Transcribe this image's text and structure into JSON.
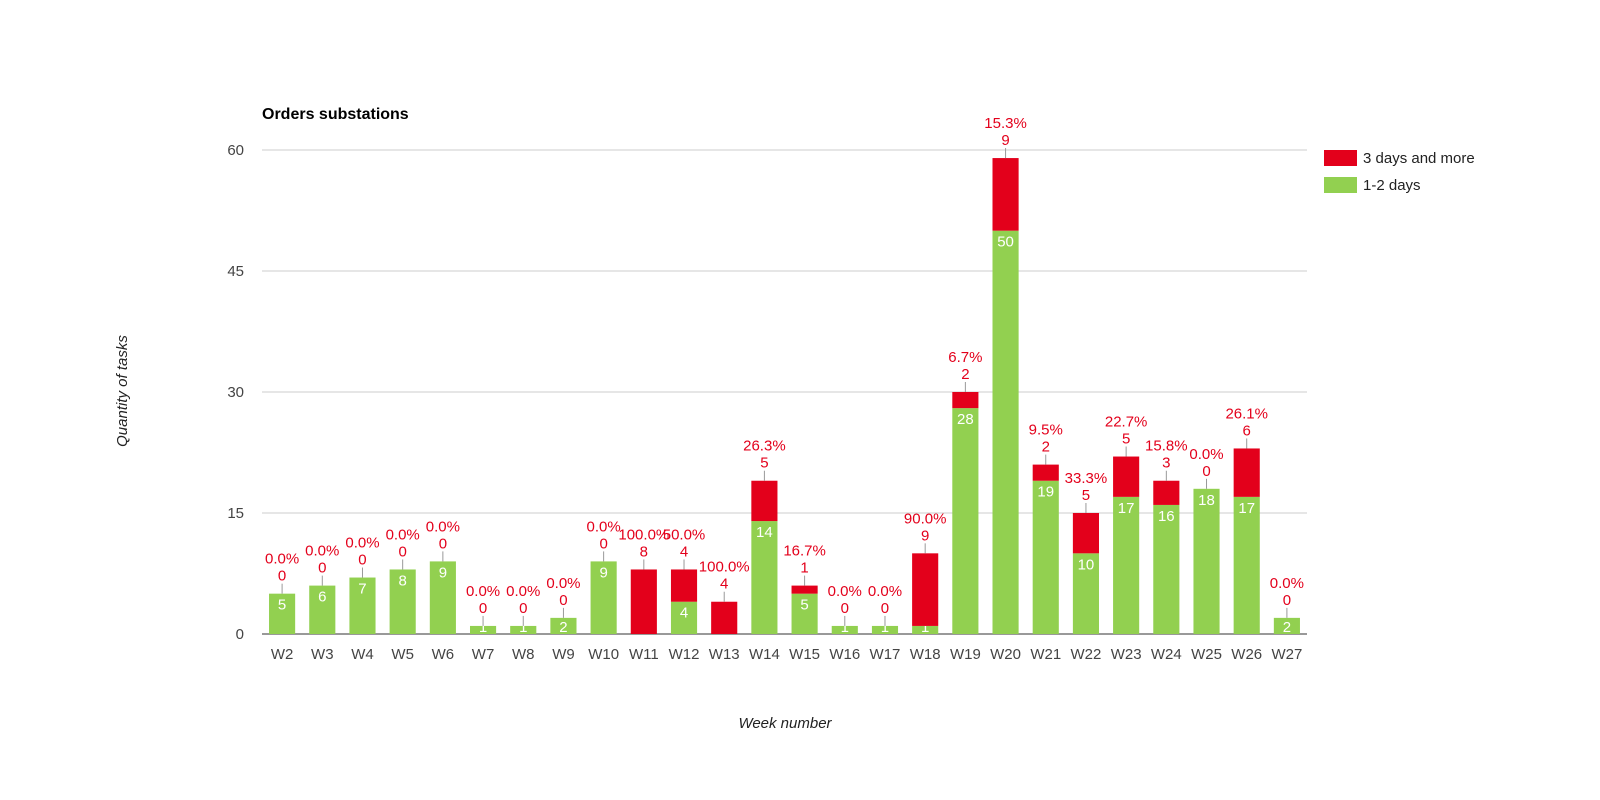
{
  "chart_data": {
    "type": "bar",
    "stacked": true,
    "title": "Orders substations",
    "xlabel": "Week number",
    "ylabel": "Quantity of tasks",
    "ylim": [
      0,
      60
    ],
    "yticks": [
      "0",
      "15",
      "30",
      "45",
      "60"
    ],
    "grid": true,
    "legend_position": "right",
    "categories": [
      "W2",
      "W3",
      "W4",
      "W5",
      "W6",
      "W7",
      "W8",
      "W9",
      "W10",
      "W11",
      "W12",
      "W13",
      "W14",
      "W15",
      "W16",
      "W17",
      "W18",
      "W19",
      "W20",
      "W21",
      "W22",
      "W23",
      "W24",
      "W25",
      "W26",
      "W27"
    ],
    "series": [
      {
        "name": "1-2 days",
        "color": "#92d050",
        "values": [
          5,
          6,
          7,
          8,
          9,
          1,
          1,
          2,
          9,
          0,
          4,
          0,
          14,
          5,
          1,
          1,
          1,
          28,
          50,
          19,
          10,
          17,
          16,
          18,
          17,
          2
        ],
        "labels": [
          "5",
          "6",
          "7",
          "8",
          "9",
          "1",
          "1",
          "2",
          "9",
          "",
          "4",
          "",
          "14",
          "5",
          "1",
          "1",
          "1",
          "28",
          "50",
          "19",
          "10",
          "17",
          "16",
          "18",
          "17",
          "2"
        ]
      },
      {
        "name": "3 days and more",
        "color": "#e3001b",
        "values": [
          0,
          0,
          0,
          0,
          0,
          0,
          0,
          0,
          0,
          8,
          4,
          4,
          5,
          1,
          0,
          0,
          9,
          2,
          9,
          2,
          5,
          5,
          3,
          0,
          6,
          0
        ],
        "labels": [
          "0",
          "0",
          "0",
          "0",
          "0",
          "0",
          "0",
          "0",
          "0",
          "8",
          "4",
          "4",
          "5",
          "1",
          "0",
          "0",
          "9",
          "2",
          "9",
          "2",
          "5",
          "5",
          "3",
          "0",
          "6",
          "0"
        ],
        "percent_labels": [
          "0.0%",
          "0.0%",
          "0.0%",
          "0.0%",
          "0.0%",
          "0.0%",
          "0.0%",
          "0.0%",
          "0.0%",
          "100.0%",
          "50.0%",
          "100.0%",
          "26.3%",
          "16.7%",
          "0.0%",
          "0.0%",
          "90.0%",
          "6.7%",
          "15.3%",
          "9.5%",
          "33.3%",
          "22.7%",
          "15.8%",
          "0.0%",
          "26.1%",
          "0.0%"
        ]
      }
    ]
  }
}
